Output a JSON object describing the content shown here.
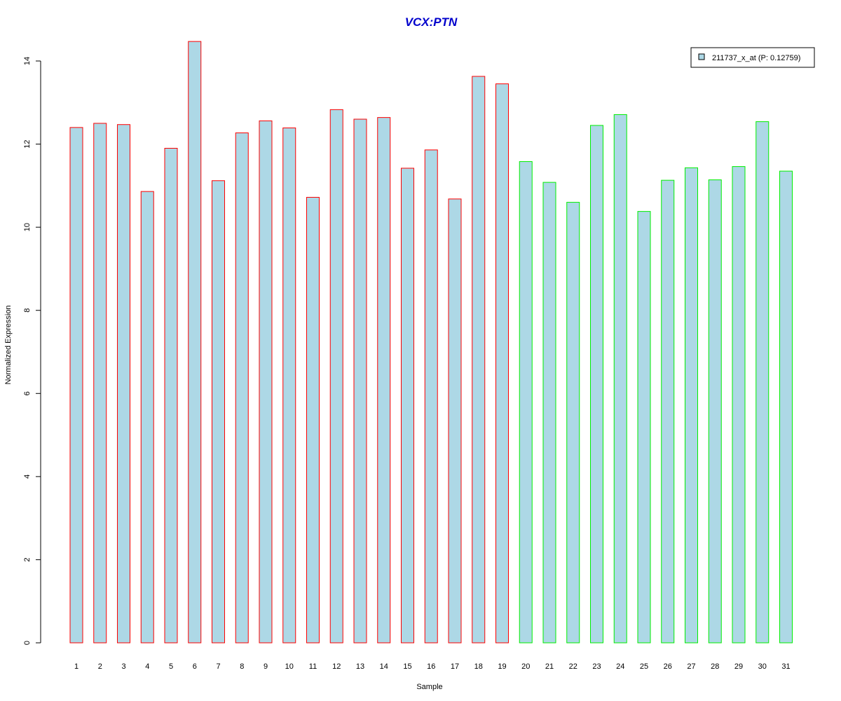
{
  "chart_data": {
    "type": "bar",
    "title": "VCX:PTN",
    "xlabel": "Sample",
    "ylabel": "Normalized Expression",
    "ylim": [
      0,
      14
    ],
    "yticks": [
      0,
      2,
      4,
      6,
      8,
      10,
      12,
      14
    ],
    "grid": false,
    "legend": {
      "placement": "top-right",
      "label": "211737_x_at (P: 0.12759)"
    },
    "categories": [
      "1",
      "2",
      "3",
      "4",
      "5",
      "6",
      "7",
      "8",
      "9",
      "10",
      "11",
      "12",
      "13",
      "14",
      "15",
      "16",
      "17",
      "18",
      "19",
      "20",
      "21",
      "22",
      "23",
      "24",
      "25",
      "26",
      "27",
      "28",
      "29",
      "30",
      "31"
    ],
    "series": [
      {
        "name": "211737_x_at (P: 0.12759)",
        "values": [
          12.4,
          12.5,
          12.47,
          10.86,
          11.9,
          14.47,
          11.12,
          12.27,
          12.56,
          12.39,
          10.72,
          12.83,
          12.6,
          12.64,
          11.42,
          11.86,
          10.68,
          13.63,
          13.45,
          11.58,
          11.08,
          10.6,
          12.45,
          12.71,
          10.38,
          11.13,
          11.43,
          11.14,
          11.46,
          12.54,
          11.35
        ]
      }
    ],
    "groups": [
      19,
      12
    ],
    "colors": {
      "title": "#0000cc",
      "bar_fill": "#add8e6",
      "group_borders": [
        "#ff0000",
        "#00ee00"
      ],
      "axis": "#000000"
    }
  }
}
